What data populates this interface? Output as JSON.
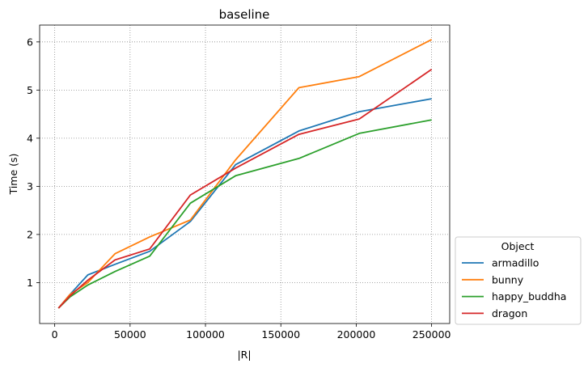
{
  "chart_data": {
    "type": "line",
    "title": "baseline",
    "xlabel": "|R|",
    "ylabel": "Time (s)",
    "xlim": [
      -10000,
      262000
    ],
    "ylim": [
      0.15,
      6.35
    ],
    "xticks": [
      0,
      50000,
      100000,
      150000,
      200000,
      250000
    ],
    "yticks": [
      1,
      2,
      3,
      4,
      5,
      6
    ],
    "grid": true,
    "legend": {
      "title": "Object",
      "placement": "outside-lower-right"
    },
    "series": [
      {
        "name": "armadillo",
        "color": "#1f77b4",
        "x": [
          2500,
          10000,
          22000,
          40000,
          63000,
          90000,
          120000,
          162000,
          202000,
          250000
        ],
        "y": [
          0.47,
          0.75,
          1.16,
          1.38,
          1.65,
          2.27,
          3.45,
          4.15,
          4.55,
          4.82
        ]
      },
      {
        "name": "bunny",
        "color": "#ff7f0e",
        "x": [
          2500,
          10000,
          22000,
          40000,
          63000,
          90000,
          120000,
          162000,
          202000,
          250000
        ],
        "y": [
          0.47,
          0.75,
          1.0,
          1.6,
          1.95,
          2.3,
          3.55,
          5.05,
          5.28,
          6.05
        ]
      },
      {
        "name": "happy_buddha",
        "color": "#2ca02c",
        "x": [
          2500,
          10000,
          22000,
          40000,
          63000,
          90000,
          120000,
          162000,
          202000,
          250000
        ],
        "y": [
          0.47,
          0.7,
          0.95,
          1.23,
          1.55,
          2.65,
          3.22,
          3.58,
          4.1,
          4.38
        ]
      },
      {
        "name": "dragon",
        "color": "#d62728",
        "x": [
          2500,
          10000,
          22000,
          40000,
          63000,
          90000,
          120000,
          162000,
          202000,
          250000
        ],
        "y": [
          0.47,
          0.72,
          1.05,
          1.47,
          1.7,
          2.82,
          3.38,
          4.08,
          4.4,
          5.43
        ]
      }
    ]
  }
}
